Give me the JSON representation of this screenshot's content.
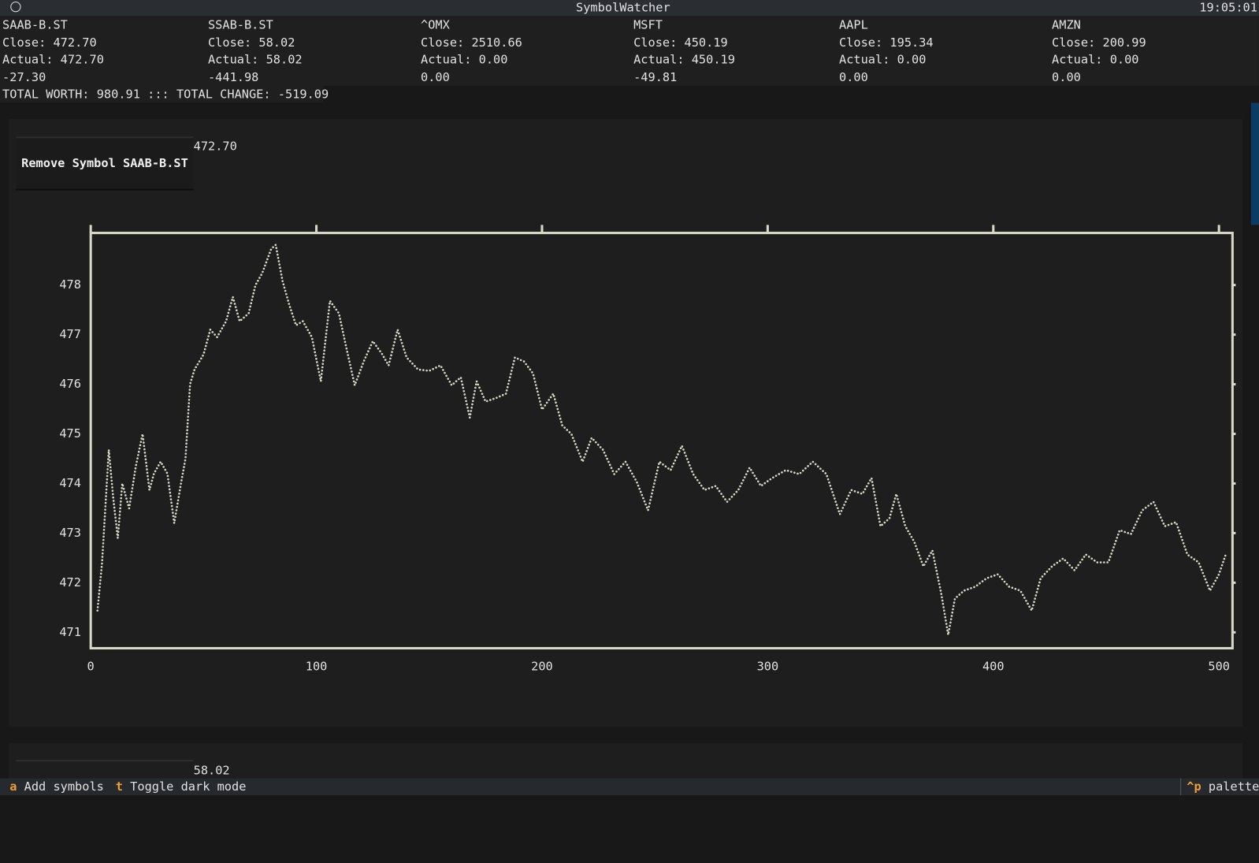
{
  "app": {
    "title": "SymbolWatcher",
    "clock": "19:05:01"
  },
  "symbols": [
    {
      "name": "SAAB-B.ST",
      "close": "Close: 472.70",
      "actual": "Actual: 472.70",
      "change": "-27.30"
    },
    {
      "name": "SSAB-B.ST",
      "close": "Close: 58.02",
      "actual": "Actual: 58.02",
      "change": "-441.98"
    },
    {
      "name": "^OMX",
      "close": "Close: 2510.66",
      "actual": "Actual: 0.00",
      "change": "0.00"
    },
    {
      "name": "MSFT",
      "close": "Close: 450.19",
      "actual": "Actual: 450.19",
      "change": "-49.81"
    },
    {
      "name": "AAPL",
      "close": "Close: 195.34",
      "actual": "Actual: 0.00",
      "change": "0.00"
    },
    {
      "name": "AMZN",
      "close": "Close: 200.99",
      "actual": "Actual: 0.00",
      "change": "0.00"
    }
  ],
  "summary": "TOTAL WORTH: 980.91 ::: TOTAL CHANGE: -519.09",
  "panels": [
    {
      "price": "472.70",
      "button": "Remove Symbol SAAB-B.ST"
    },
    {
      "price": "58.02"
    }
  ],
  "footer": {
    "bindings": [
      {
        "key": "a",
        "label": "Add symbols"
      },
      {
        "key": "t",
        "label": "Toggle dark mode"
      }
    ],
    "palette": {
      "key": "^p",
      "label": "palette"
    }
  },
  "chart_data": {
    "type": "line",
    "x": [
      3,
      5,
      8,
      10,
      12,
      14,
      17,
      20,
      23,
      26,
      28,
      31,
      34,
      37,
      40,
      42,
      44,
      46,
      50,
      53,
      56,
      60,
      63,
      66,
      70,
      73,
      76,
      80,
      82,
      85,
      88,
      91,
      94,
      98,
      102,
      106,
      110,
      113,
      117,
      121,
      125,
      129,
      132,
      136,
      140,
      145,
      150,
      155,
      160,
      164,
      168,
      171,
      175,
      180,
      184,
      188,
      192,
      196,
      200,
      205,
      209,
      213,
      218,
      222,
      227,
      232,
      237,
      242,
      247,
      252,
      257,
      262,
      267,
      272,
      277,
      282,
      287,
      292,
      297,
      302,
      308,
      314,
      320,
      326,
      332,
      337,
      342,
      346,
      350,
      354,
      357,
      361,
      365,
      369,
      373,
      377,
      380,
      383,
      387,
      392,
      397,
      402,
      407,
      412,
      417,
      421,
      426,
      431,
      436,
      441,
      446,
      451,
      456,
      461,
      466,
      471,
      476,
      481,
      486,
      491,
      496,
      500,
      503
    ],
    "series": [
      {
        "color": "#d8d8c6",
        "values": [
          471.44,
          472.4,
          474.68,
          473.7,
          472.9,
          474.0,
          473.5,
          474.35,
          475.0,
          473.87,
          474.2,
          474.44,
          474.2,
          473.2,
          474.0,
          474.5,
          476.0,
          476.3,
          476.6,
          477.1,
          476.95,
          477.27,
          477.76,
          477.27,
          477.43,
          478.0,
          478.24,
          478.73,
          478.81,
          478.08,
          477.6,
          477.19,
          477.27,
          476.95,
          476.06,
          477.68,
          477.43,
          476.79,
          475.98,
          476.46,
          476.87,
          476.62,
          476.38,
          477.1,
          476.54,
          476.3,
          476.27,
          476.38,
          475.98,
          476.14,
          475.33,
          476.06,
          475.65,
          475.73,
          475.81,
          476.54,
          476.46,
          476.22,
          475.49,
          475.81,
          475.17,
          475.0,
          474.44,
          474.92,
          474.68,
          474.19,
          474.44,
          474.03,
          473.46,
          474.44,
          474.27,
          474.76,
          474.19,
          473.87,
          473.95,
          473.63,
          473.87,
          474.32,
          473.95,
          474.11,
          474.27,
          474.19,
          474.44,
          474.19,
          473.38,
          473.87,
          473.79,
          474.11,
          473.14,
          473.3,
          473.79,
          473.14,
          472.82,
          472.33,
          472.65,
          471.76,
          470.95,
          471.68,
          471.84,
          471.92,
          472.09,
          472.17,
          471.92,
          471.84,
          471.44,
          472.09,
          472.33,
          472.49,
          472.25,
          472.57,
          472.41,
          472.41,
          473.06,
          472.98,
          473.46,
          473.63,
          473.14,
          473.22,
          472.57,
          472.41,
          471.84,
          472.17,
          472.57
        ]
      }
    ],
    "xlim": [
      0,
      506
    ],
    "ylim": [
      470.68,
      479.05
    ],
    "xticks": [
      0,
      100,
      200,
      300,
      400,
      500
    ],
    "yticks": [
      471,
      472,
      473,
      474,
      475,
      476,
      477,
      478
    ]
  }
}
